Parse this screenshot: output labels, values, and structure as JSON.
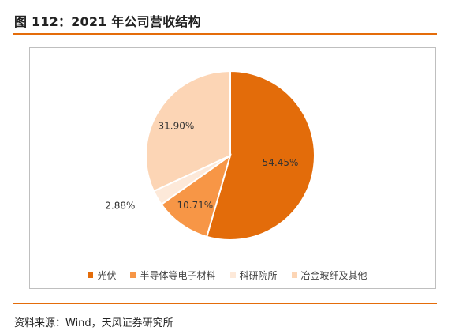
{
  "header": {
    "title": "图 112：2021 年公司营收结构"
  },
  "source": "资料来源：Wind，天风证券研究所",
  "chart_data": {
    "type": "pie",
    "title": "",
    "slices": [
      {
        "name": "光伏",
        "value": 54.45,
        "label": "54.45%",
        "color": "#e36c0a"
      },
      {
        "name": "半导体等电子材料",
        "value": 10.71,
        "label": "10.71%",
        "color": "#f79646"
      },
      {
        "name": "科研院所",
        "value": 2.88,
        "label": "2.88%",
        "color": "#fde9d9"
      },
      {
        "name": "冶金玻纤及其他",
        "value": 31.9,
        "label": "31.90%",
        "color": "#fcd5b5"
      }
    ],
    "start_angle_deg": 0,
    "direction": "clockwise",
    "legend_position": "bottom",
    "legend": [
      "光伏",
      "半导体等电子材料",
      "科研院所",
      "冶金玻纤及其他"
    ]
  }
}
